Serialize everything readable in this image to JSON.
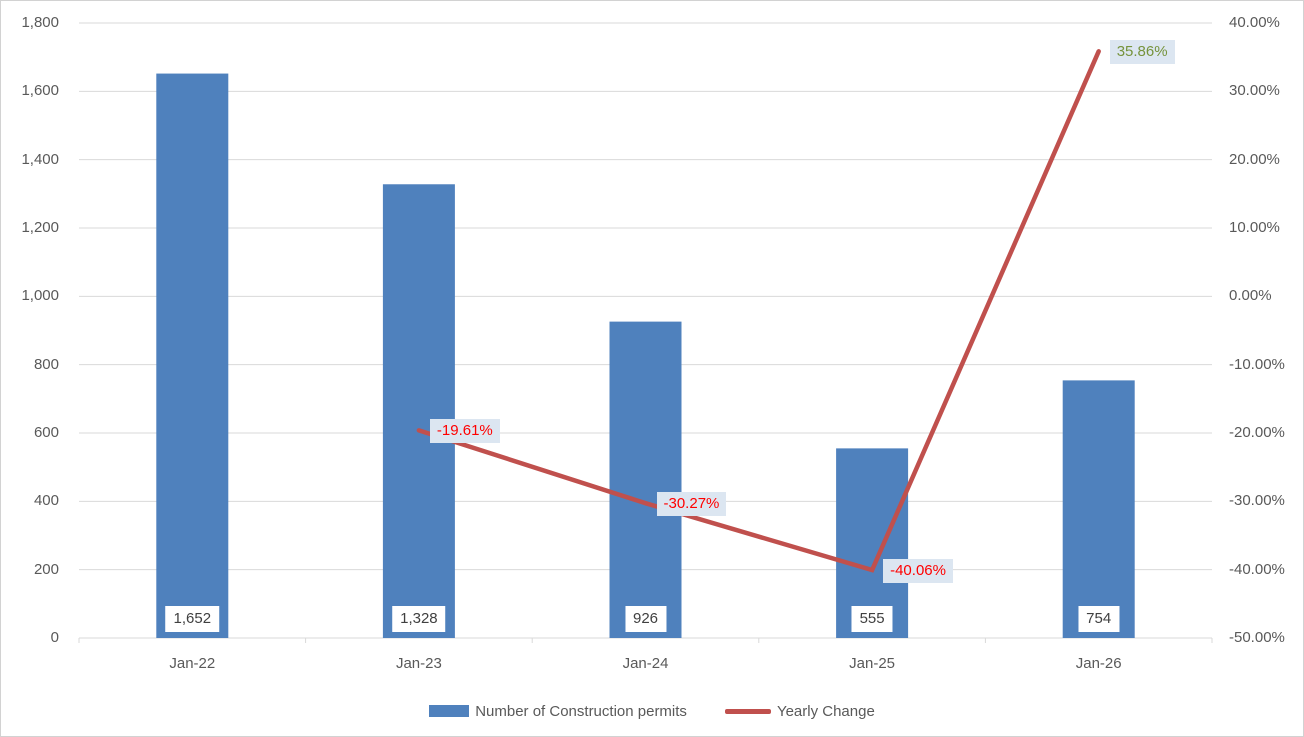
{
  "chart_data": {
    "type": "combo-bar-line",
    "title": "",
    "categories": [
      "Jan-22",
      "Jan-23",
      "Jan-24",
      "Jan-25",
      "Jan-26"
    ],
    "series": [
      {
        "name": "Number of Construction permits",
        "type": "bar",
        "axis": "left",
        "color": "#4f81bd",
        "values": [
          1652,
          1328,
          926,
          555,
          754
        ],
        "labels": [
          "1,652",
          "1,328",
          "926",
          "555",
          "754"
        ]
      },
      {
        "name": "Yearly Change",
        "type": "line",
        "axis": "right",
        "color": "#c0504d",
        "values": [
          null,
          -19.61,
          -30.27,
          -40.06,
          35.86
        ],
        "labels": [
          null,
          "-19.61%",
          "-30.27%",
          "-40.06%",
          "35.86%"
        ]
      }
    ],
    "left_axis": {
      "min": 0,
      "max": 1800,
      "step": 200,
      "ticks": [
        "1,800",
        "1,600",
        "1,400",
        "1,200",
        "1,000",
        "800",
        "600",
        "400",
        "200",
        "0"
      ]
    },
    "right_axis": {
      "min": -50,
      "max": 40,
      "step": 10,
      "ticks": [
        "40.00%",
        "30.00%",
        "20.00%",
        "10.00%",
        "0.00%",
        "-10.00%",
        "-20.00%",
        "-30.00%",
        "-40.00%",
        "-50.00%"
      ]
    },
    "grid": true,
    "legend_position": "bottom",
    "style": {
      "grid_color": "#d9d9d9",
      "axis_text_color": "#595959",
      "bar_label_bg": "#ffffff",
      "bar_label_text": "#404040",
      "line_label_bg": "#dce6f1",
      "negative_label_text": "#ff0000",
      "positive_label_text": "#76933c",
      "line_width": 4.5
    }
  }
}
